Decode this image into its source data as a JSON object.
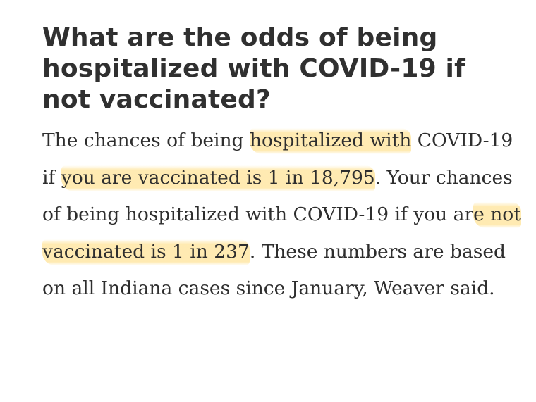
{
  "article": {
    "headline": "What are the odds of being hospitalized with COVID-19 if not vaccinated?",
    "paragraph": {
      "part1": "The chances of being ",
      "highlight1": "hospitalized with",
      "part2": " COVID-19 if ",
      "highlight2": "you are vaccinated is 1 in 18,795",
      "part3": ". Your chances of being hospitalized with COVID-19 if you ar",
      "highlight3": "e not vaccinated is 1 in 237",
      "part4": ". These numbers are based on all Indiana cases since January, Weaver said."
    },
    "highlight_color": "#FFDE82"
  }
}
